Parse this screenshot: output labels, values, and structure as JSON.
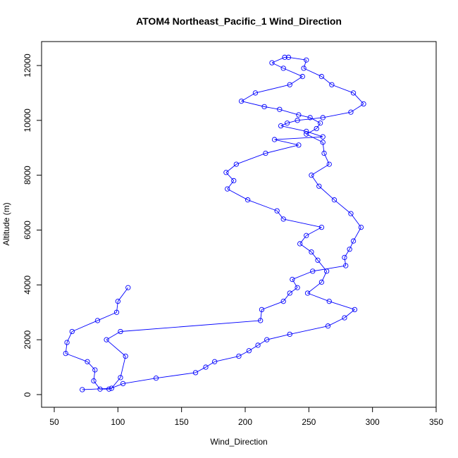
{
  "chart_data": {
    "type": "line",
    "title": "ATOM4 Northeast_Pacific_1 Wind_Direction",
    "xlabel": "Wind_Direction",
    "ylabel": "Altitude (m)",
    "xlim": [
      50,
      350
    ],
    "ylim": [
      0,
      12500
    ],
    "xticks": [
      "50",
      "100",
      "150",
      "200",
      "250",
      "300",
      "350"
    ],
    "yticks": [
      "0",
      "2000",
      "4000",
      "6000",
      "8000",
      "10000",
      "12000"
    ],
    "grid": false,
    "legend": "none",
    "marker": "open-circle",
    "color": "#0000ff",
    "series": [
      {
        "x": [
          72,
          95,
          102,
          106,
          91,
          102,
          212,
          213,
          230,
          235,
          241,
          237,
          253,
          279,
          278,
          282,
          285,
          291,
          283,
          270,
          258,
          252,
          266,
          262,
          261,
          248,
          256,
          259,
          251,
          242,
          227,
          215,
          197,
          208,
          235,
          245,
          230,
          221,
          231,
          234,
          248,
          246,
          260,
          268,
          285,
          293,
          283,
          261,
          241,
          233,
          228,
          248,
          261,
          223,
          242,
          216,
          193,
          185,
          191,
          186,
          202,
          225,
          230,
          260,
          248,
          243,
          252,
          257,
          264,
          260,
          249,
          266,
          286,
          278,
          265,
          235,
          217,
          210,
          203,
          195,
          176,
          169,
          161,
          130,
          104,
          93,
          86,
          81,
          82,
          76,
          59,
          60,
          64,
          84,
          99,
          100,
          108
        ],
        "y": [
          180,
          230,
          620,
          1400,
          2000,
          2300,
          2700,
          3100,
          3400,
          3700,
          3900,
          4200,
          4500,
          4700,
          5000,
          5300,
          5600,
          6100,
          6600,
          7100,
          7600,
          8000,
          8400,
          8800,
          9200,
          9500,
          9700,
          9900,
          10100,
          10200,
          10400,
          10500,
          10700,
          11000,
          11300,
          11600,
          11900,
          12100,
          12300,
          12300,
          12200,
          11900,
          11600,
          11300,
          11000,
          10600,
          10300,
          10100,
          10000,
          9900,
          9800,
          9600,
          9400,
          9300,
          9100,
          8800,
          8400,
          8100,
          7800,
          7500,
          7100,
          6700,
          6400,
          6100,
          5800,
          5500,
          5200,
          4900,
          4500,
          4100,
          3700,
          3400,
          3100,
          2800,
          2500,
          2200,
          2000,
          1800,
          1600,
          1400,
          1200,
          1000,
          800,
          600,
          400,
          200,
          200,
          500,
          900,
          1200,
          1500,
          1900,
          2300,
          2700,
          3000,
          3400,
          3900
        ]
      }
    ]
  }
}
